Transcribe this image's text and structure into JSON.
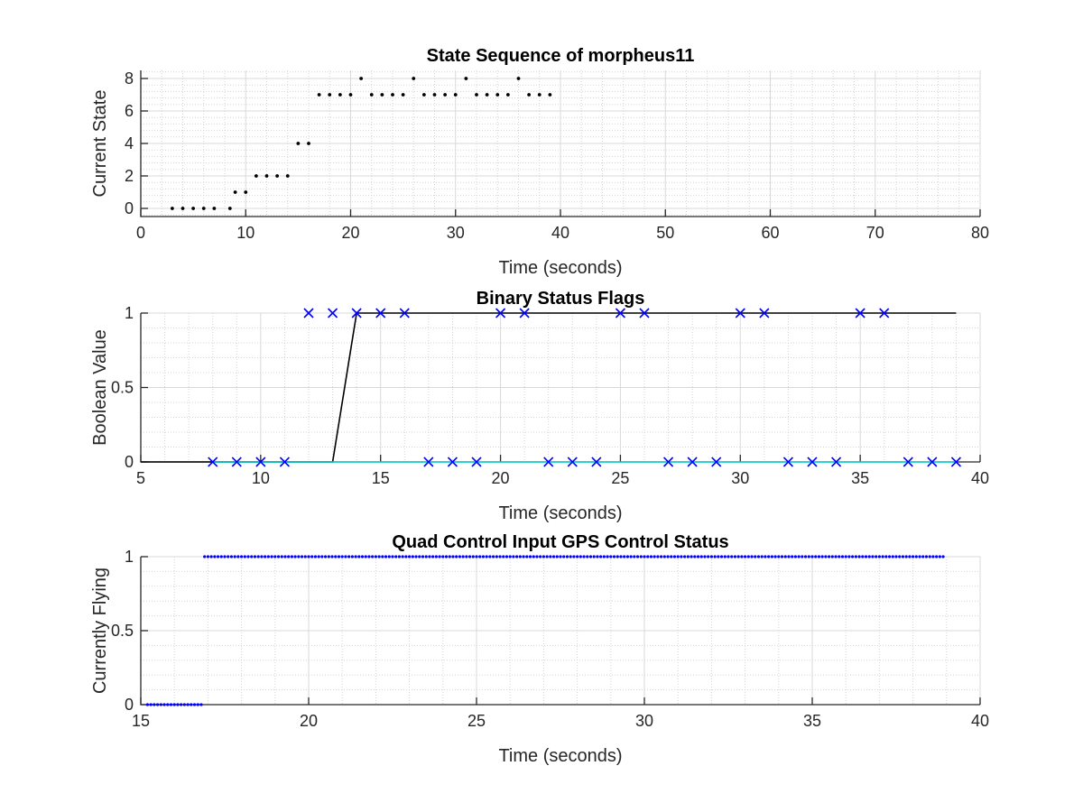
{
  "chart_data": [
    {
      "type": "scatter",
      "title": "State Sequence of morpheus11",
      "xlabel": "Time (seconds)",
      "ylabel": "Current State",
      "xlim": [
        0,
        80
      ],
      "ylim": [
        -0.5,
        8.5
      ],
      "xticks": [
        0,
        10,
        20,
        30,
        40,
        50,
        60,
        70,
        80
      ],
      "yticks": [
        0,
        2,
        4,
        6,
        8
      ],
      "grid": "major and minor",
      "series": [
        {
          "marker": "dot",
          "color": "#000000",
          "x": [
            3,
            4,
            5,
            6,
            7,
            8.5,
            9,
            10,
            11,
            12,
            13,
            14,
            15,
            16,
            17,
            18,
            19,
            20,
            21,
            22,
            23,
            24,
            25,
            26,
            27,
            28,
            29,
            30,
            31,
            32,
            33,
            34,
            35,
            36,
            37,
            38,
            39
          ],
          "y": [
            0,
            0,
            0,
            0,
            0,
            0,
            1,
            1,
            2,
            2,
            2,
            2,
            4,
            4,
            7,
            7,
            7,
            7,
            8,
            7,
            7,
            7,
            7,
            8,
            7,
            7,
            7,
            7,
            8,
            7,
            7,
            7,
            7,
            8,
            7,
            7,
            7
          ]
        }
      ]
    },
    {
      "type": "line",
      "title": "Binary Status Flags",
      "xlabel": "Time (seconds)",
      "ylabel": "Boolean Value",
      "xlim": [
        5,
        40
      ],
      "ylim": [
        0,
        1
      ],
      "xticks": [
        5,
        10,
        15,
        20,
        25,
        30,
        35,
        40
      ],
      "yticks": [
        0,
        0.5,
        1
      ],
      "ytick_labels": [
        "0",
        "0.5",
        "1"
      ],
      "grid": "major and minor",
      "series": [
        {
          "kind": "line",
          "color": "#000000",
          "x": [
            5,
            13,
            14,
            39
          ],
          "y": [
            0,
            0,
            1,
            1
          ]
        },
        {
          "kind": "line",
          "color": "#00d4d4",
          "x": [
            8,
            39
          ],
          "y": [
            0,
            0
          ]
        },
        {
          "kind": "markers",
          "marker": "x",
          "color": "#0000ff",
          "x": [
            8,
            9,
            10,
            11,
            12,
            13,
            14,
            15,
            16,
            17,
            18,
            19,
            20,
            21,
            22,
            23,
            24,
            25,
            26,
            27,
            28,
            29,
            30,
            31,
            32,
            33,
            34,
            35,
            36,
            37,
            38,
            39
          ],
          "y": [
            0,
            0,
            0,
            0,
            1,
            1,
            1,
            1,
            1,
            0,
            0,
            0,
            1,
            1,
            0,
            0,
            0,
            1,
            1,
            0,
            0,
            0,
            1,
            1,
            0,
            0,
            0,
            1,
            1,
            0,
            0,
            0
          ]
        }
      ]
    },
    {
      "type": "scatter",
      "title": "Quad Control Input GPS Control Status",
      "xlabel": "Time (seconds)",
      "ylabel": "Currently Flying",
      "xlim": [
        15,
        40
      ],
      "ylim": [
        0,
        1
      ],
      "xticks": [
        15,
        20,
        25,
        30,
        35,
        40
      ],
      "yticks": [
        0,
        0.5,
        1
      ],
      "ytick_labels": [
        "0",
        "0.5",
        "1"
      ],
      "grid": "major and minor",
      "series": [
        {
          "marker": "dense-dots",
          "color": "#0000ff",
          "segments": [
            {
              "x": [
                15.2,
                16.8
              ],
              "y": 0
            },
            {
              "x": [
                16.9,
                38.9
              ],
              "y": 1
            }
          ],
          "sample_step": 0.1
        }
      ]
    }
  ]
}
